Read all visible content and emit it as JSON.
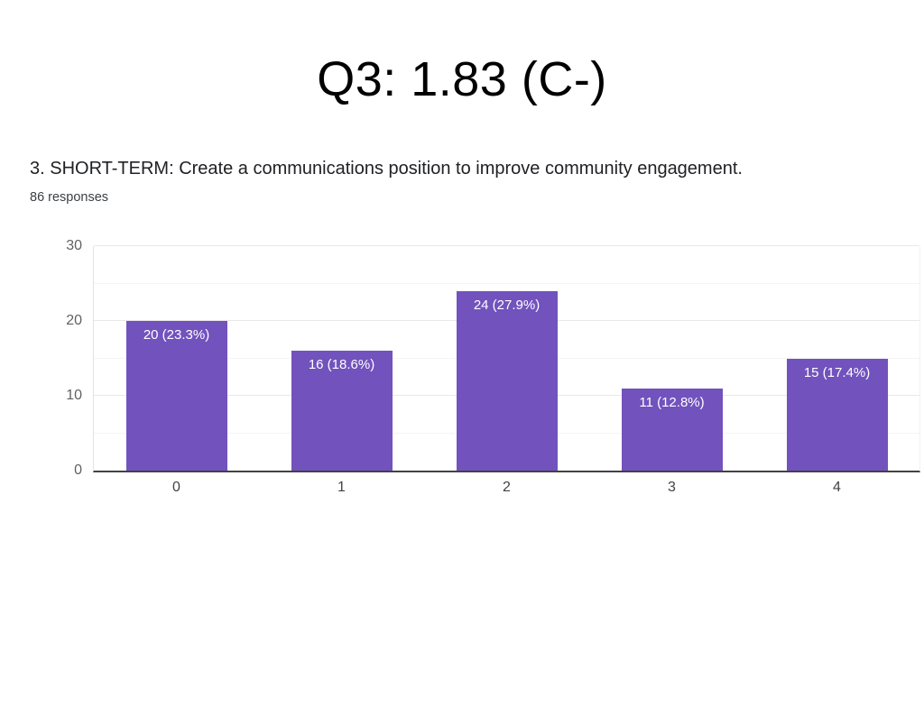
{
  "page": {
    "title": "Q3: 1.83 (C-)"
  },
  "question": {
    "text": "3. SHORT-TERM: Create a communications position to improve community engagement.",
    "responses_label": "86 responses"
  },
  "chart_data": {
    "type": "bar",
    "title": "",
    "categories": [
      "0",
      "1",
      "2",
      "3",
      "4"
    ],
    "values": [
      20,
      16,
      24,
      11,
      15
    ],
    "bar_labels": [
      "20 (23.3%)",
      "16 (18.6%)",
      "24 (27.9%)",
      "11 (12.8%)",
      "15 (17.4%)"
    ],
    "percentages": [
      23.3,
      18.6,
      27.9,
      12.8,
      17.4
    ],
    "total_responses": 86,
    "xlabel": "",
    "ylabel": "",
    "ylim": [
      0,
      30
    ],
    "y_ticks": [
      0,
      10,
      20,
      30
    ],
    "y_minor_ticks": [
      5,
      15,
      25
    ],
    "grid": "on",
    "legend": "none",
    "bar_color": "#7252BD",
    "axis_line_color": "#424242",
    "label_text_color": "#ffffff"
  }
}
